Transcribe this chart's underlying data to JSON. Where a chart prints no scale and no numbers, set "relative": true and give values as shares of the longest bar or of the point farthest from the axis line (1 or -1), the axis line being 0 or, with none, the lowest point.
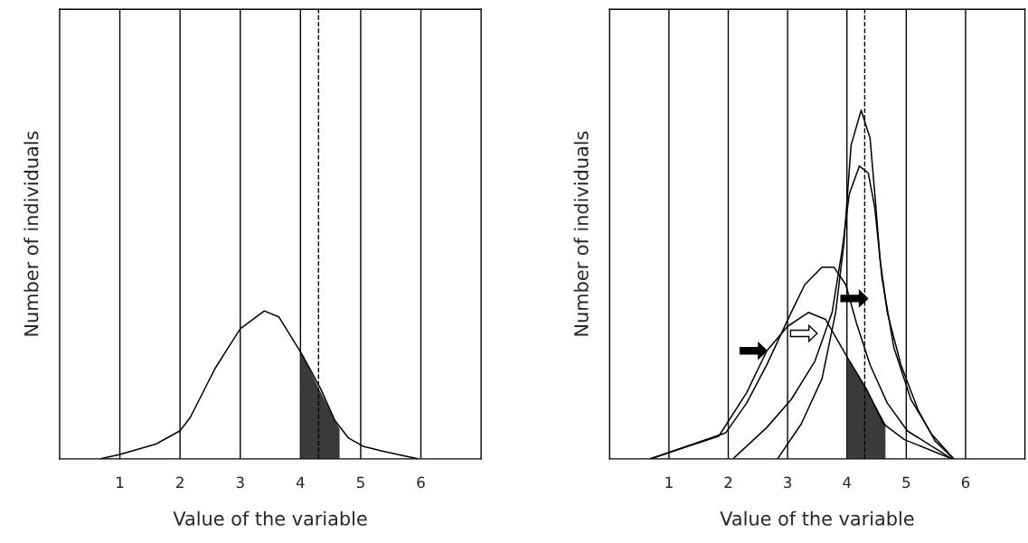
{
  "chart_data": [
    {
      "type": "line",
      "relative": true,
      "xlabel": "Value of the variable",
      "ylabel": "Number of individuals",
      "xlim": [
        0,
        7
      ],
      "xticks": [
        1,
        2,
        3,
        4,
        5,
        6
      ],
      "grid": "x",
      "tick_labels": "x",
      "series": [
        {
          "color": "#000000",
          "x": [
            0.68,
            1.0,
            1.6,
            2.0,
            2.17,
            2.58,
            3.0,
            3.4,
            3.64,
            4.02,
            4.34,
            4.57,
            4.8,
            5.04,
            5.39,
            5.95
          ],
          "values": [
            0,
            0.03,
            0.1,
            0.19,
            0.28,
            0.61,
            0.88,
            1.0,
            0.96,
            0.71,
            0.47,
            0.26,
            0.14,
            0.085,
            0.05,
            0
          ]
        },
        {
          "type": "area",
          "color": "#3a3a3a",
          "x": [
            4.0,
            4.3,
            4.65
          ],
          "values": [
            0.73,
            0.48,
            0.2
          ]
        }
      ],
      "ref_lines": [
        {
          "axis": "x",
          "value": 4.3,
          "line_style": "dashed",
          "color": "#000000"
        }
      ]
    },
    {
      "type": "line",
      "relative": true,
      "xlabel": "Value of the variable",
      "ylabel": "Number of individuals",
      "xlim": [
        0,
        7
      ],
      "xticks": [
        1,
        2,
        3,
        4,
        5,
        6
      ],
      "grid": "x",
      "tick_labels": "x",
      "series": [
        {
          "color": "#000000",
          "x": [
            0.69,
            1.84,
            2.31,
            2.65,
            3.0,
            3.35,
            3.64,
            4.01,
            4.33,
            4.62,
            4.97,
            5.77
          ],
          "values": [
            0,
            0.065,
            0.19,
            0.31,
            0.38,
            0.42,
            0.4,
            0.29,
            0.2,
            0.1,
            0.055,
            0
          ]
        },
        {
          "color": "#000000",
          "x": [
            0.69,
            1.96,
            2.31,
            2.65,
            3.06,
            3.29,
            3.58,
            3.78,
            3.98,
            4.16,
            4.39,
            4.68,
            5.02,
            5.77
          ],
          "values": [
            0,
            0.075,
            0.16,
            0.27,
            0.42,
            0.5,
            0.55,
            0.55,
            0.5,
            0.39,
            0.27,
            0.16,
            0.08,
            0
          ]
        },
        {
          "color": "#000000",
          "x": [
            2.08,
            2.65,
            3.06,
            3.46,
            3.75,
            3.92,
            4.04,
            4.21,
            4.36,
            4.47,
            4.59,
            4.79,
            5.08,
            5.43,
            5.8
          ],
          "values": [
            0,
            0.09,
            0.17,
            0.28,
            0.42,
            0.6,
            0.76,
            0.84,
            0.82,
            0.72,
            0.52,
            0.32,
            0.17,
            0.07,
            0
          ]
        },
        {
          "color": "#000000",
          "x": [
            2.83,
            3.23,
            3.58,
            3.81,
            3.95,
            4.07,
            4.24,
            4.39,
            4.47,
            4.56,
            4.68,
            4.91,
            5.2,
            5.49,
            5.8
          ],
          "values": [
            0,
            0.1,
            0.23,
            0.42,
            0.62,
            0.9,
            1.0,
            0.92,
            0.76,
            0.57,
            0.42,
            0.27,
            0.14,
            0.05,
            0
          ]
        },
        {
          "type": "area",
          "color": "#3a3a3a",
          "x": [
            4.0,
            4.33,
            4.65
          ],
          "values": [
            0.29,
            0.2,
            0.1
          ]
        }
      ],
      "ref_lines": [
        {
          "axis": "x",
          "value": 4.3,
          "line_style": "dashed",
          "color": "#000000"
        }
      ]
    }
  ]
}
